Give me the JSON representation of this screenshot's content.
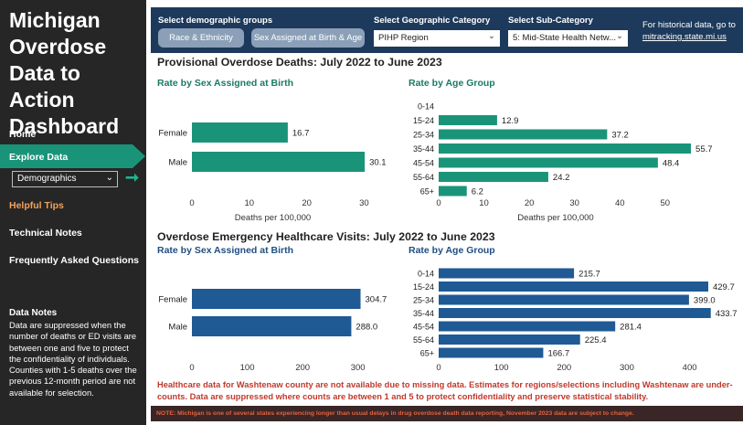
{
  "sidebar": {
    "title": "Michigan Overdose Data to Action Dashboard",
    "nav": {
      "home": "Home",
      "explore": "Explore Data",
      "tips": "Helpful Tips",
      "technical": "Technical Notes",
      "faq": "Frequently Asked Questions"
    },
    "demographics_select": "Demographics",
    "data_notes_title": "Data Notes",
    "data_notes_text": "Data are suppressed when the number of deaths or ED visits are between one and five to protect the confidentiality of individuals. Counties with 1-5 deaths over the previous 12-month period are not available for selection."
  },
  "filters": {
    "demo_label": "Select demographic groups",
    "btn_race": "Race & Ethnicity",
    "btn_sex_age": "Sex Assigned at Birth & Age",
    "geo_label": "Select Geographic Category",
    "geo_value": "PIHP Region",
    "sub_label": "Select Sub-Category",
    "sub_value": "5: Mid-State Health Netw...",
    "hist_text": "For historical data, go to",
    "hist_link": "mitracking.state.mi.us"
  },
  "deaths_section": {
    "title": "Provisional Overdose Deaths: July 2022 to June 2023",
    "sex_subtitle": "Rate by Sex Assigned at Birth",
    "age_subtitle": "Rate by Age Group"
  },
  "ed_section": {
    "title": "Overdose Emergency Healthcare Visits: July 2022 to June 2023",
    "sex_subtitle": "Rate by Sex Assigned at Birth",
    "age_subtitle": "Rate by Age Group"
  },
  "warning": "Healthcare data for Washtenaw county are not available due to missing data. Estimates for regions/selections including Washtenaw are under-counts. Data are suppressed where counts are between 1 and 5 to protect confidentiality and preserve statistical stability.",
  "note": "NOTE: Michigan is one of several states experiencing longer than usual delays in drug overdose death data reporting, November 2023 data are subject to change.",
  "colors": {
    "deaths_bar": "#1a9479",
    "ed_bar": "#1f5a94",
    "sidebar_bg": "#262626",
    "filter_bg": "#1d3a5c",
    "deaths_subtitle": "#1a7a63",
    "ed_subtitle": "#1f4f82"
  },
  "chart_data": [
    {
      "type": "bar",
      "orientation": "horizontal",
      "title": "Rate by Sex Assigned at Birth",
      "categories": [
        "Female",
        "Male"
      ],
      "values": [
        16.7,
        30.1
      ],
      "labels": [
        "16.7",
        "30.1"
      ],
      "xlabel": "Deaths per 100,000",
      "xticks": [
        0,
        10,
        20,
        30
      ],
      "xlim": [
        0,
        32
      ]
    },
    {
      "type": "bar",
      "orientation": "horizontal",
      "title": "Rate by Age Group",
      "categories": [
        "0-14",
        "15-24",
        "25-34",
        "35-44",
        "45-54",
        "55-64",
        "65+"
      ],
      "values": [
        0,
        12.9,
        37.2,
        55.7,
        48.4,
        24.2,
        6.2
      ],
      "labels": [
        "",
        "12.9",
        "37.2",
        "55.7",
        "48.4",
        "24.2",
        "6.2"
      ],
      "xlabel": "Deaths per 100,000",
      "xticks": [
        0,
        10,
        20,
        30,
        40,
        50
      ],
      "xlim": [
        0,
        56.5
      ]
    },
    {
      "type": "bar",
      "orientation": "horizontal",
      "title": "Rate by Sex Assigned at Birth",
      "categories": [
        "Female",
        "Male"
      ],
      "values": [
        304.7,
        288.0
      ],
      "labels": [
        "304.7",
        "288.0"
      ],
      "xlabel": "",
      "xticks": [
        0,
        100,
        200,
        300
      ],
      "xlim": [
        0,
        322
      ]
    },
    {
      "type": "bar",
      "orientation": "horizontal",
      "title": "Rate by Age Group",
      "categories": [
        "0-14",
        "15-24",
        "25-34",
        "35-44",
        "45-54",
        "55-64",
        "65+"
      ],
      "values": [
        215.7,
        429.7,
        399.0,
        433.7,
        281.4,
        225.4,
        166.7
      ],
      "labels": [
        "215.7",
        "429.7",
        "399.0",
        "433.7",
        "281.4",
        "225.4",
        "166.7"
      ],
      "xlabel": "",
      "xticks": [
        0,
        100,
        200,
        300,
        400
      ],
      "xlim": [
        0,
        437
      ]
    }
  ]
}
